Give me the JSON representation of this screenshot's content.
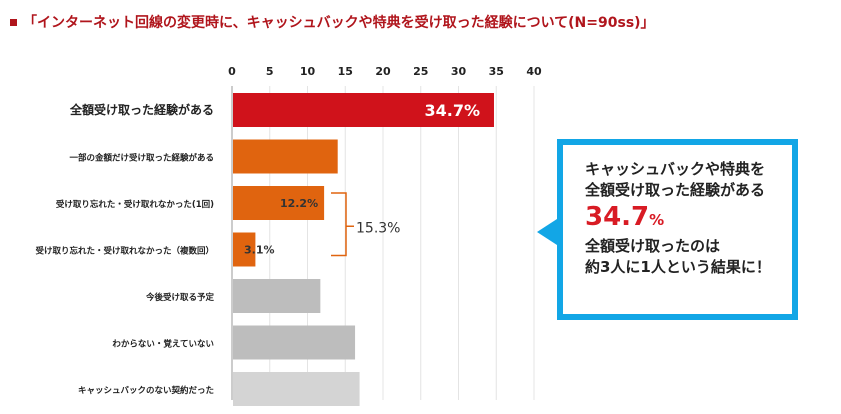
{
  "header": {
    "title": "「インターネット回線の変更時に、キャッシュバックや特典を受け取った経験について(N=90ss)」"
  },
  "callout": {
    "line1": "キャッシュバックや特典を",
    "line2": "全額受け取った経験がある",
    "big_value": "34.7",
    "big_unit": "%",
    "line3": "全額受け取ったのは",
    "line4": "約3人に1人という結果に！"
  },
  "colors": {
    "accent_red": "#d0121b",
    "orange": "#e0640f",
    "gray": "#bdbdbd",
    "light_gray": "#d4d4d4",
    "callout_blue": "#12a6e6",
    "title_red": "#b0151c"
  },
  "chart_data": {
    "type": "bar",
    "orientation": "horizontal",
    "categories": [
      "全額受け取った経験がある",
      "一部の金額だけ受け取った経験がある",
      "受け取り忘れた・受け取れなかった(1回)",
      "受け取り忘れた・受け取れなかった（複数回）",
      "今後受け取る予定",
      "わからない・覚えていない",
      "キャッシュバックのない契約だった"
    ],
    "values": [
      34.7,
      14.0,
      12.2,
      3.1,
      11.7,
      16.3,
      16.9
    ],
    "value_labels": [
      "34.7%",
      "",
      "12.2%",
      "3.1%",
      "",
      "",
      ""
    ],
    "bar_colors": [
      "#d0121b",
      "#e0640f",
      "#e0640f",
      "#e0640f",
      "#bdbdbd",
      "#bdbdbd",
      "#d4d4d4"
    ],
    "xlim": [
      0,
      40
    ],
    "xticks": [
      "0",
      "5",
      "10",
      "15",
      "20",
      "25",
      "30",
      "35",
      "40"
    ],
    "grid": true,
    "bracket_label": "15.3%",
    "title": "",
    "xlabel": "",
    "ylabel": ""
  }
}
